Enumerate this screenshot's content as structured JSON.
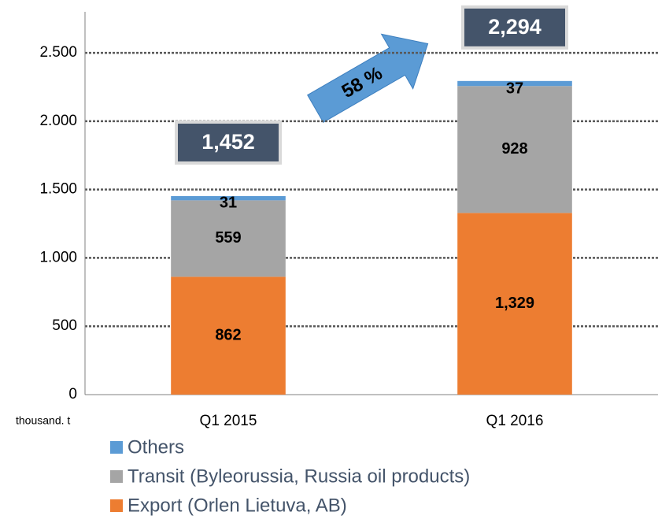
{
  "chart_data": {
    "type": "stacked_bar",
    "y_axis_label": "thousand. t",
    "categories": [
      "Q1 2015",
      "Q1 2016"
    ],
    "series": [
      {
        "name": "Export (Orlen Lietuva, AB)",
        "color": "#ED7D31",
        "values": [
          862,
          1329
        ],
        "value_labels": [
          "862",
          "1,329"
        ]
      },
      {
        "name": "Transit (Byleorussia, Russia oil products)",
        "color": "#A5A5A5",
        "values": [
          559,
          928
        ]
      },
      {
        "name": "Others",
        "color": "#5B9BD5",
        "values": [
          31,
          37
        ]
      }
    ],
    "totals": [
      1452,
      2294
    ],
    "total_labels": [
      "1,452",
      "2,294"
    ],
    "annotation": "58 %",
    "ylim": [
      0,
      2800
    ],
    "yticks": [
      0,
      500,
      {
        "value": 1000,
        "label": "1.000"
      },
      {
        "value": 1500,
        "label": "1.500"
      },
      {
        "value": 2000,
        "label": "2.000"
      },
      {
        "value": 2500,
        "label": "2.500"
      }
    ],
    "grid": true,
    "legend_position": "bottom"
  }
}
